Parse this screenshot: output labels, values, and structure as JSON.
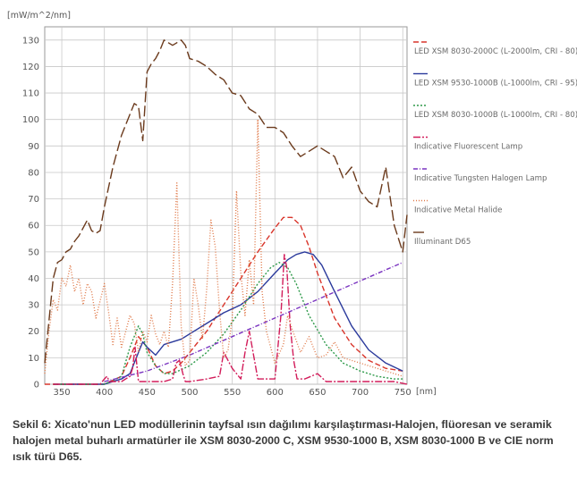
{
  "chart_data": {
    "type": "line",
    "title": "",
    "ylabel": "[mW/m^2/nm]",
    "xlabel": "[nm]",
    "xlim": [
      330,
      755
    ],
    "ylim": [
      0,
      135
    ],
    "xticks": [
      350,
      400,
      450,
      500,
      550,
      600,
      650,
      700,
      750
    ],
    "yticks": [
      0,
      10,
      20,
      30,
      40,
      50,
      60,
      70,
      80,
      90,
      100,
      110,
      120,
      130
    ],
    "grid": true,
    "legend_position": "right",
    "series": [
      {
        "name": "LED XSM 8030-2000C (L-2000lm, CRI - 80)",
        "color": "#d9352b",
        "dash": "6 3",
        "x": [
          330,
          400,
          420,
          430,
          440,
          450,
          460,
          470,
          480,
          490,
          500,
          520,
          540,
          560,
          580,
          600,
          610,
          620,
          630,
          640,
          650,
          670,
          690,
          710,
          730,
          750
        ],
        "y": [
          0,
          0,
          3,
          10,
          18,
          14,
          7,
          4,
          5,
          8,
          12,
          20,
          30,
          40,
          50,
          59,
          63,
          63,
          60,
          52,
          42,
          25,
          15,
          9,
          6,
          5
        ]
      },
      {
        "name": "LED XSM 9530-1000B (L-1000lm, CRI - 95)",
        "color": "#2b3a9c",
        "dash": "",
        "x": [
          340,
          400,
          410,
          420,
          430,
          440,
          445,
          450,
          460,
          470,
          480,
          490,
          500,
          520,
          540,
          560,
          580,
          600,
          615,
          625,
          635,
          645,
          655,
          670,
          690,
          710,
          730,
          750
        ],
        "y": [
          0,
          0,
          1,
          2,
          4,
          12,
          16,
          14,
          11,
          15,
          16,
          17,
          19,
          23,
          27,
          30,
          35,
          42,
          47,
          49,
          50,
          49,
          45,
          35,
          22,
          13,
          8,
          5
        ]
      },
      {
        "name": "LED XSM 8030-1000B (L-1000lm, CRI - 80)",
        "color": "#2e9a4a",
        "dash": "2 2",
        "x": [
          340,
          400,
          420,
          430,
          440,
          445,
          450,
          460,
          470,
          480,
          500,
          520,
          540,
          560,
          580,
          595,
          605,
          615,
          625,
          640,
          660,
          680,
          700,
          720,
          740,
          750
        ],
        "y": [
          0,
          0,
          3,
          14,
          22,
          19,
          12,
          7,
          4,
          4,
          7,
          12,
          19,
          28,
          38,
          44,
          46,
          44,
          38,
          26,
          15,
          8,
          5,
          3,
          2,
          2
        ]
      },
      {
        "name": "Indicative Fluorescent Lamp",
        "color": "#d21c5a",
        "dash": "8 2 2 2",
        "x": [
          340,
          395,
          400,
          403,
          406,
          420,
          430,
          433,
          436,
          440,
          470,
          480,
          484,
          488,
          492,
          495,
          500,
          520,
          535,
          540,
          545,
          550,
          560,
          565,
          570,
          580,
          600,
          607,
          611,
          614,
          618,
          622,
          626,
          635,
          650,
          660,
          700,
          740,
          755
        ],
        "y": [
          0,
          0,
          2,
          3,
          1,
          1,
          3,
          6,
          14,
          1,
          1,
          2,
          8,
          9,
          4,
          1,
          1,
          2,
          3,
          12,
          9,
          6,
          2,
          12,
          20,
          2,
          2,
          26,
          49,
          44,
          22,
          9,
          2,
          2,
          4,
          1,
          1,
          1,
          0
        ]
      },
      {
        "name": "Indicative Tungsten Halogen Lamp",
        "color": "#7a33c0",
        "dash": "5 2 1 2",
        "x": [
          400,
          450,
          500,
          550,
          600,
          650,
          700,
          750
        ],
        "y": [
          1,
          5,
          11,
          18,
          25,
          32,
          39,
          46
        ]
      },
      {
        "name": "Indicative Metal Halide",
        "color": "#e07a4a",
        "dash": "1 2",
        "x": [
          330,
          335,
          340,
          345,
          350,
          355,
          360,
          365,
          370,
          375,
          380,
          385,
          390,
          400,
          405,
          410,
          415,
          420,
          430,
          435,
          440,
          445,
          450,
          455,
          460,
          465,
          470,
          475,
          480,
          485,
          490,
          495,
          500,
          505,
          510,
          515,
          520,
          525,
          530,
          535,
          540,
          545,
          550,
          555,
          560,
          565,
          570,
          575,
          580,
          585,
          590,
          600,
          610,
          615,
          620,
          630,
          640,
          650,
          660,
          670,
          680,
          690,
          700,
          710,
          720,
          730,
          740,
          750
        ],
        "y": [
          4,
          20,
          32,
          28,
          40,
          37,
          45,
          35,
          40,
          30,
          38,
          35,
          25,
          38,
          27,
          15,
          25,
          14,
          26,
          23,
          12,
          20,
          16,
          26,
          19,
          15,
          20,
          14,
          38,
          76,
          22,
          7,
          9,
          40,
          30,
          17,
          36,
          62,
          52,
          28,
          10,
          13,
          25,
          73,
          42,
          26,
          47,
          30,
          100,
          35,
          20,
          8,
          15,
          26,
          21,
          12,
          18,
          10,
          11,
          16,
          10,
          9,
          8,
          7,
          6,
          5,
          4,
          3
        ]
      },
      {
        "name": "Illuminant D65",
        "color": "#6b3a1c",
        "dash": "12 4",
        "x": [
          330,
          340,
          345,
          350,
          355,
          360,
          365,
          370,
          380,
          385,
          390,
          395,
          400,
          410,
          420,
          430,
          435,
          440,
          445,
          450,
          455,
          460,
          465,
          470,
          475,
          480,
          485,
          490,
          495,
          500,
          510,
          520,
          530,
          540,
          550,
          560,
          570,
          580,
          590,
          600,
          610,
          620,
          630,
          640,
          650,
          660,
          670,
          680,
          690,
          700,
          710,
          720,
          730,
          740,
          750,
          755
        ],
        "y": [
          8,
          40,
          46,
          47,
          50,
          51,
          54,
          56,
          62,
          58,
          57,
          58,
          67,
          82,
          94,
          102,
          106,
          105,
          92,
          118,
          121,
          123,
          126,
          130,
          129,
          128,
          129,
          130,
          128,
          123,
          122,
          120,
          117,
          115,
          110,
          109,
          104,
          102,
          97,
          97,
          95,
          90,
          86,
          88,
          90,
          88,
          86,
          78,
          82,
          73,
          69,
          67,
          82,
          60,
          50,
          64
        ]
      }
    ]
  },
  "caption": "Sekil 6: Xicato'nun LED modüllerinin tayfsal ısın dağılımı karşılaştırması-Halojen, flüoresan ve seramik halojen metal buharlı armatürler ile XSM 8030-2000 C, XSM 9530-1000 B, XSM 8030-1000 B ve CIE norm ısık türü D65."
}
